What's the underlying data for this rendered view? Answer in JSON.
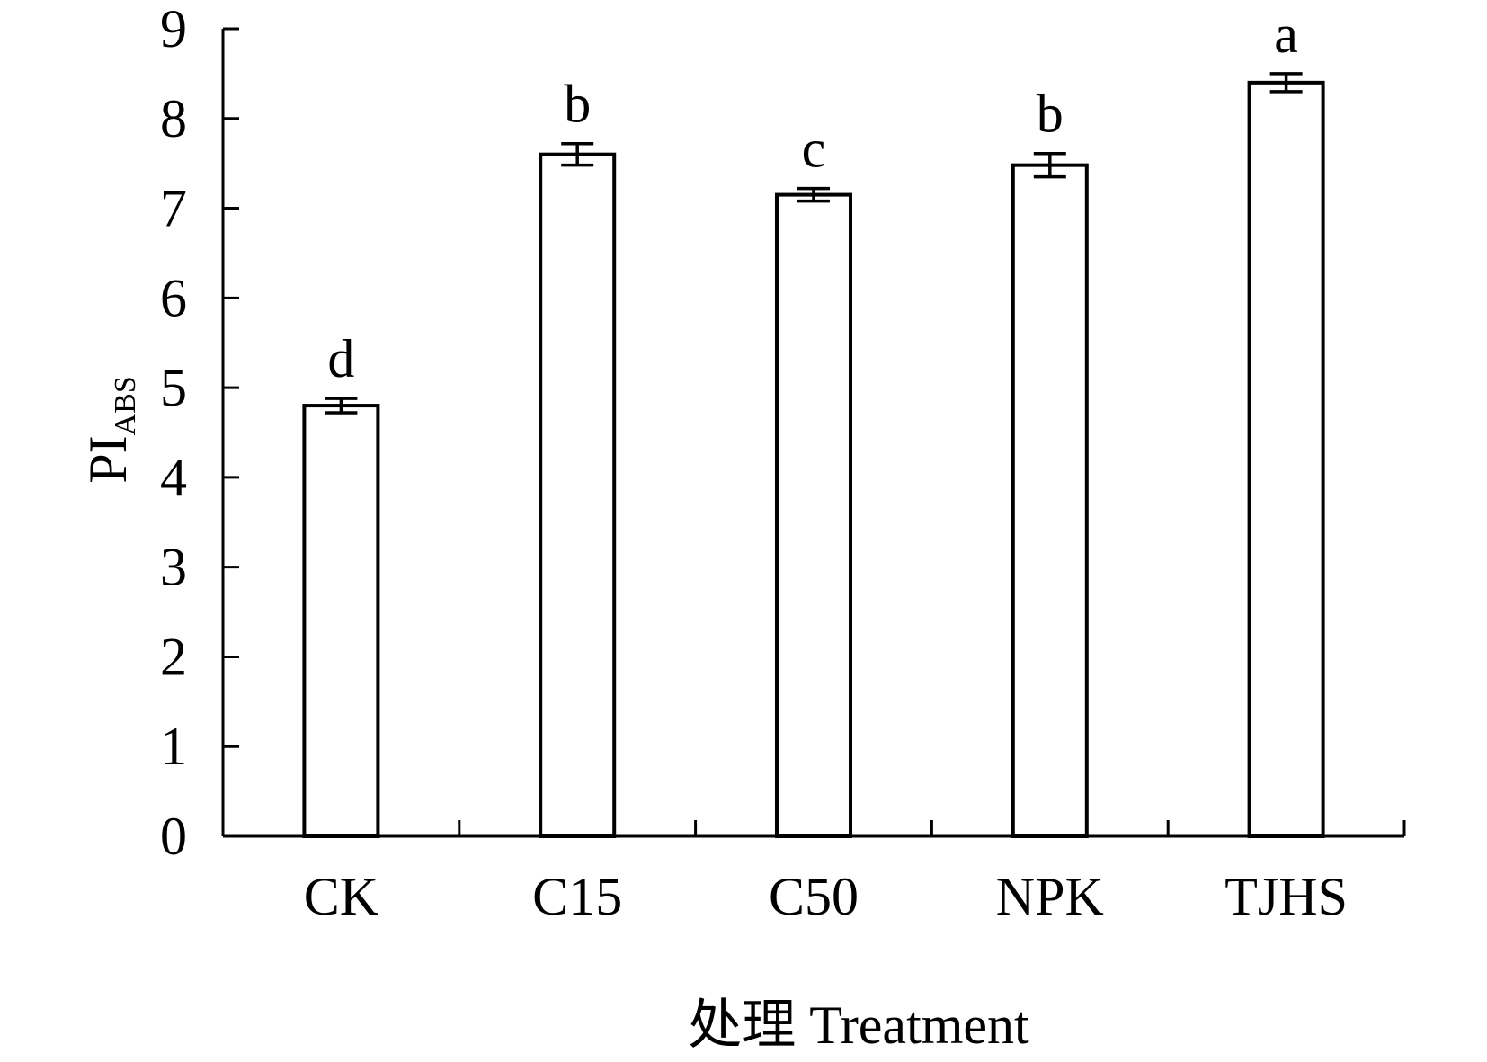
{
  "chart_data": {
    "type": "bar",
    "title": "",
    "xlabel": "处理 Treatment",
    "ylabel": {
      "main": "PI",
      "sub": "ABS"
    },
    "ylim": [
      0,
      9
    ],
    "yticks": [
      0,
      1,
      2,
      3,
      4,
      5,
      6,
      7,
      8,
      9
    ],
    "categories": [
      "CK",
      "C15",
      "C50",
      "NPK",
      "TJHS"
    ],
    "values": [
      4.8,
      7.6,
      7.15,
      7.48,
      8.4
    ],
    "errors": [
      0.08,
      0.12,
      0.07,
      0.13,
      0.1
    ],
    "significance": [
      "d",
      "b",
      "c",
      "b",
      "a"
    ],
    "grid": false,
    "legend": "none",
    "colors": {
      "bar_fill": "#ffffff",
      "bar_stroke": "#000000"
    }
  }
}
